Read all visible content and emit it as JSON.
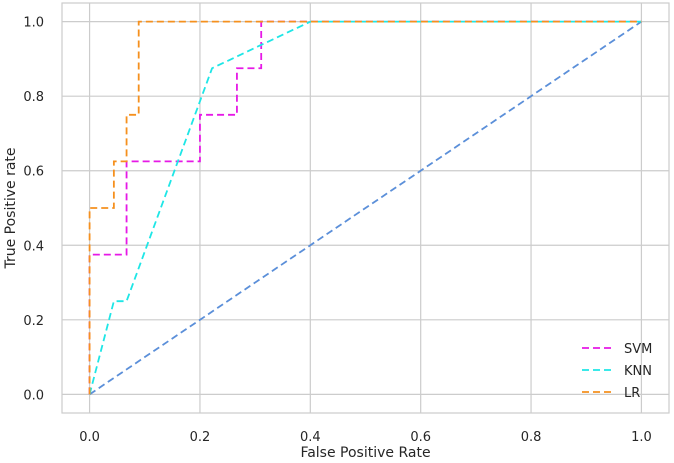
{
  "chart_data": {
    "type": "line",
    "title": "",
    "xlabel": "False Positive Rate",
    "ylabel": "True Positive rate",
    "xlim": [
      -0.05,
      1.05
    ],
    "ylim": [
      -0.05,
      1.05
    ],
    "xticks": [
      "0.0",
      "0.2",
      "0.4",
      "0.6",
      "0.8",
      "1.0"
    ],
    "yticks": [
      "0.0",
      "0.2",
      "0.4",
      "0.6",
      "0.8",
      "1.0"
    ],
    "grid": true,
    "legend_position": "bottom-right",
    "series": [
      {
        "name": "SVM",
        "color": "#e619e6",
        "x": [
          0.0,
          0.0,
          0.067,
          0.067,
          0.2,
          0.2,
          0.267,
          0.267,
          0.311,
          0.311,
          0.4,
          1.0
        ],
        "y": [
          0.0,
          0.375,
          0.375,
          0.625,
          0.625,
          0.75,
          0.75,
          0.875,
          0.875,
          1.0,
          1.0,
          1.0
        ]
      },
      {
        "name": "KNN",
        "color": "#1ee6e6",
        "x": [
          0.0,
          0.044,
          0.067,
          0.222,
          0.4,
          1.0
        ],
        "y": [
          0.0,
          0.25,
          0.25,
          0.875,
          1.0,
          1.0
        ]
      },
      {
        "name": "LR",
        "color": "#f5901e",
        "x": [
          0.0,
          0.0,
          0.044,
          0.044,
          0.067,
          0.067,
          0.089,
          0.089,
          1.0
        ],
        "y": [
          0.0,
          0.5,
          0.5,
          0.625,
          0.625,
          0.75,
          0.75,
          1.0,
          1.0
        ]
      }
    ],
    "reference_line": {
      "color": "#5b8fd9",
      "x": [
        0.0,
        1.0
      ],
      "y": [
        0.0,
        1.0
      ]
    }
  }
}
